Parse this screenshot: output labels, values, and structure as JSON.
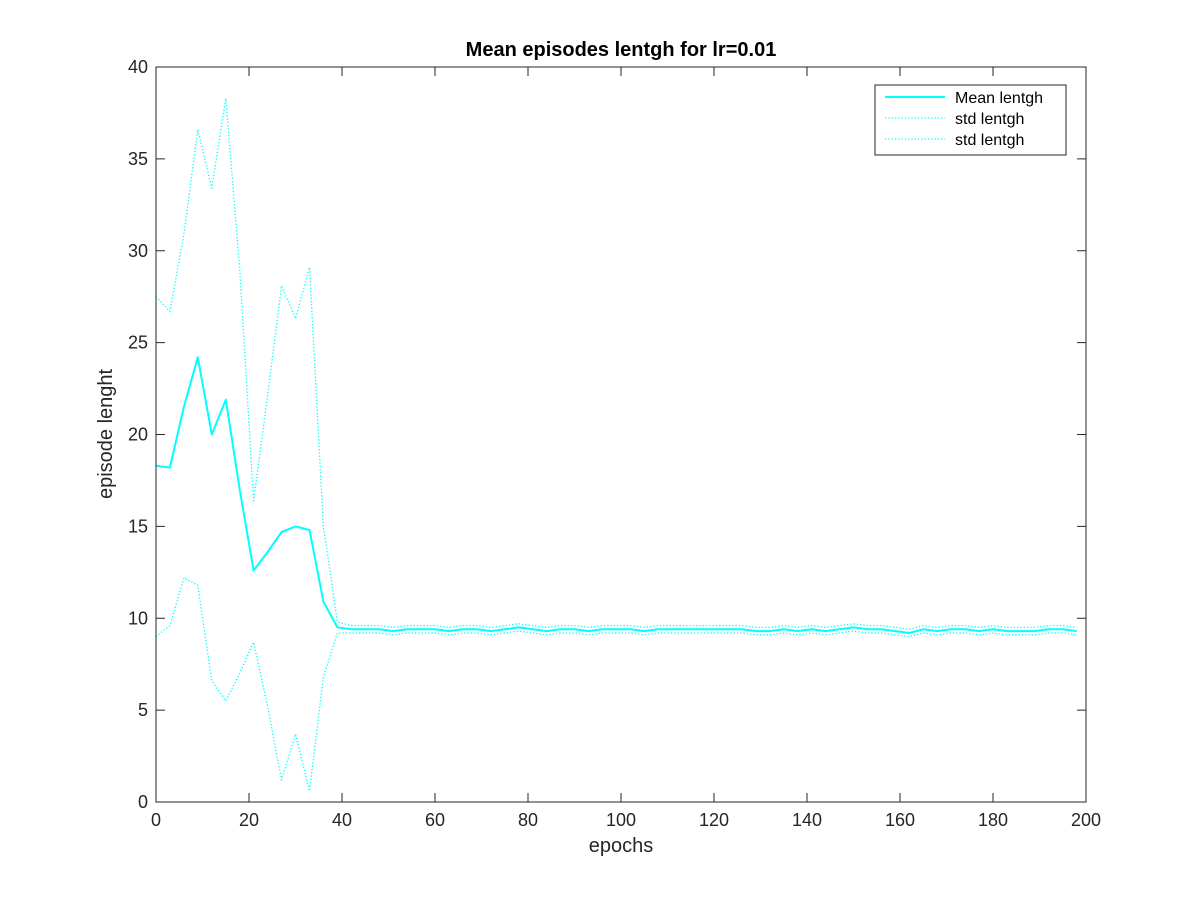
{
  "chart_data": {
    "type": "line",
    "title": "Mean episodes lentgh for lr=0.01",
    "xlabel": "epochs",
    "ylabel": "episode lenght",
    "xlim": [
      0,
      200
    ],
    "ylim": [
      0,
      40
    ],
    "xticks": [
      "0",
      "20",
      "40",
      "60",
      "80",
      "100",
      "120",
      "140",
      "160",
      "180",
      "200"
    ],
    "yticks": [
      "0",
      "5",
      "10",
      "15",
      "20",
      "25",
      "30",
      "35",
      "40"
    ],
    "grid": false,
    "legend_position": "top-right",
    "color": "#00FFFF",
    "x": [
      0,
      3,
      6,
      9,
      12,
      15,
      18,
      21,
      24,
      27,
      30,
      33,
      36,
      39,
      42,
      45,
      48,
      51,
      54,
      57,
      60,
      63,
      66,
      69,
      72,
      75,
      78,
      81,
      84,
      87,
      90,
      93,
      96,
      99,
      102,
      105,
      108,
      111,
      114,
      117,
      120,
      123,
      126,
      129,
      132,
      135,
      138,
      141,
      144,
      147,
      150,
      153,
      156,
      159,
      162,
      165,
      168,
      171,
      174,
      177,
      180,
      183,
      186,
      189,
      192,
      195,
      198
    ],
    "series": [
      {
        "name": "Mean lentgh",
        "style": "solid",
        "values": [
          18.3,
          18.2,
          21.5,
          24.2,
          20.0,
          21.9,
          17.0,
          12.6,
          13.6,
          14.7,
          15.0,
          14.8,
          10.9,
          9.5,
          9.4,
          9.4,
          9.4,
          9.3,
          9.4,
          9.4,
          9.4,
          9.3,
          9.4,
          9.4,
          9.3,
          9.4,
          9.5,
          9.4,
          9.3,
          9.4,
          9.4,
          9.3,
          9.4,
          9.4,
          9.4,
          9.3,
          9.4,
          9.4,
          9.4,
          9.4,
          9.4,
          9.4,
          9.4,
          9.3,
          9.3,
          9.4,
          9.3,
          9.4,
          9.3,
          9.4,
          9.5,
          9.4,
          9.4,
          9.3,
          9.2,
          9.4,
          9.3,
          9.4,
          9.4,
          9.3,
          9.4,
          9.3,
          9.3,
          9.3,
          9.4,
          9.4,
          9.3
        ]
      },
      {
        "name": "std lentgh",
        "style": "dotted",
        "values": [
          27.5,
          26.7,
          30.9,
          36.6,
          33.4,
          38.3,
          29.0,
          16.4,
          22.1,
          28.1,
          26.3,
          29.1,
          15.0,
          9.8,
          9.6,
          9.6,
          9.6,
          9.5,
          9.6,
          9.6,
          9.6,
          9.5,
          9.6,
          9.6,
          9.5,
          9.6,
          9.7,
          9.6,
          9.5,
          9.6,
          9.6,
          9.5,
          9.6,
          9.6,
          9.6,
          9.5,
          9.6,
          9.6,
          9.6,
          9.6,
          9.6,
          9.6,
          9.6,
          9.5,
          9.5,
          9.6,
          9.5,
          9.6,
          9.5,
          9.6,
          9.7,
          9.6,
          9.6,
          9.5,
          9.4,
          9.6,
          9.5,
          9.6,
          9.6,
          9.5,
          9.6,
          9.5,
          9.5,
          9.5,
          9.6,
          9.6,
          9.5
        ]
      },
      {
        "name": "std lentgh",
        "style": "dotted",
        "values": [
          9.0,
          9.6,
          12.2,
          11.8,
          6.6,
          5.5,
          7.0,
          8.7,
          5.2,
          1.2,
          3.7,
          0.6,
          6.8,
          9.2,
          9.2,
          9.2,
          9.2,
          9.1,
          9.2,
          9.2,
          9.2,
          9.1,
          9.2,
          9.2,
          9.1,
          9.2,
          9.3,
          9.2,
          9.1,
          9.2,
          9.2,
          9.1,
          9.2,
          9.2,
          9.2,
          9.1,
          9.2,
          9.2,
          9.2,
          9.2,
          9.2,
          9.2,
          9.2,
          9.1,
          9.1,
          9.2,
          9.1,
          9.2,
          9.1,
          9.2,
          9.3,
          9.2,
          9.2,
          9.1,
          9.0,
          9.2,
          9.1,
          9.2,
          9.2,
          9.1,
          9.2,
          9.1,
          9.1,
          9.1,
          9.2,
          9.2,
          9.1
        ]
      }
    ]
  }
}
